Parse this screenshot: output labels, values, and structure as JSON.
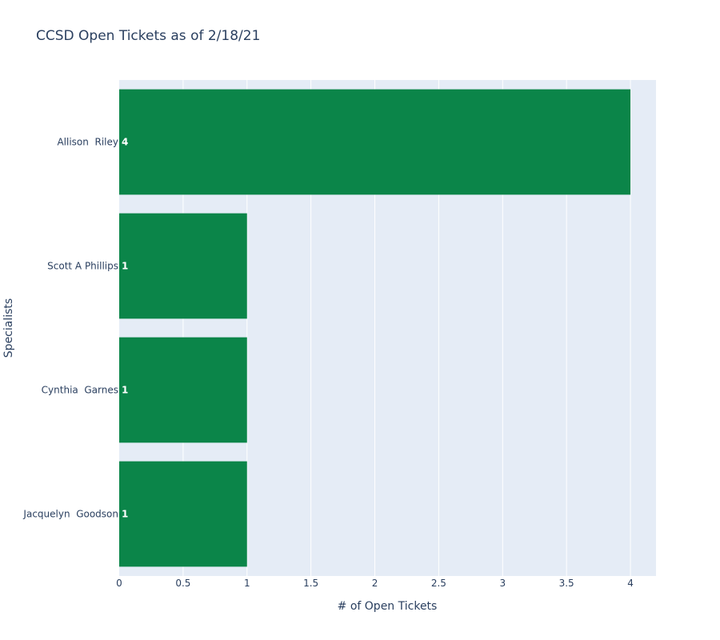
{
  "chart_data": {
    "type": "bar",
    "orientation": "horizontal",
    "title": "CCSD Open Tickets as of 2/18/21",
    "xlabel": "# of Open Tickets",
    "ylabel": "Specialists",
    "categories": [
      "Allison  Riley",
      "Scott A Phillips",
      "Cynthia  Garnes",
      "Jacquelyn  Goodson"
    ],
    "values": [
      4,
      1,
      1,
      1
    ],
    "value_labels": [
      "4",
      "1",
      "1",
      "1"
    ],
    "xlim": [
      0,
      4.2
    ],
    "x_ticks": [
      0,
      0.5,
      1,
      1.5,
      2,
      2.5,
      3,
      3.5,
      4
    ],
    "x_tick_labels": [
      "0",
      "0.5",
      "1",
      "1.5",
      "2",
      "2.5",
      "3",
      "3.5",
      "4"
    ],
    "bar_color": "#0b8549",
    "plot_background": "#e5ecf6",
    "grid": true
  }
}
